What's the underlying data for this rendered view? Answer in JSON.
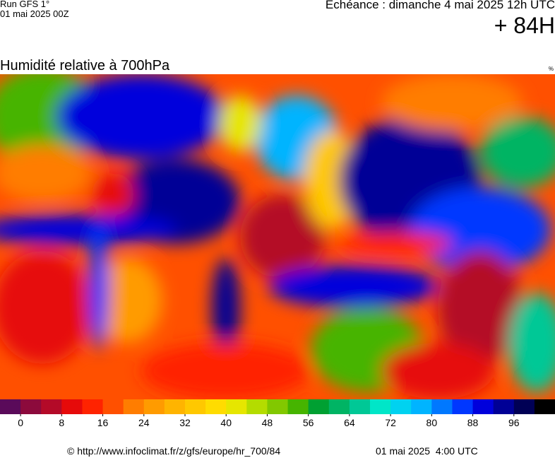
{
  "header": {
    "run": "Run GFS 1°",
    "run_date": "01 mai 2025 00Z",
    "valid": "Echéance : dimanche 4 mai 2025 12h UTC",
    "lead": "+ 84H"
  },
  "map": {
    "title": "Humidité relative à 700hPa",
    "unit": "%"
  },
  "colorbar": {
    "colors": [
      "#5a0a5a",
      "#8c0a3c",
      "#b40a28",
      "#e60a0a",
      "#ff2300",
      "#ff5000",
      "#ff7d00",
      "#ff9b00",
      "#ffb400",
      "#ffc800",
      "#ffdc00",
      "#e6e600",
      "#b4dc00",
      "#82c800",
      "#46b400",
      "#00a032",
      "#00b464",
      "#00c896",
      "#00e6c8",
      "#00d2f0",
      "#00b4ff",
      "#0078ff",
      "#0037ff",
      "#0000dc",
      "#000096",
      "#000055",
      "#000000"
    ],
    "ticks": [
      0,
      8,
      16,
      24,
      32,
      40,
      48,
      56,
      64,
      72,
      80,
      88,
      96
    ]
  },
  "footer": {
    "source": "© http://www.infoclimat.fr/z/gfs/europe/hr_700/84",
    "generated": "01 mai 2025  4:00 UTC"
  }
}
